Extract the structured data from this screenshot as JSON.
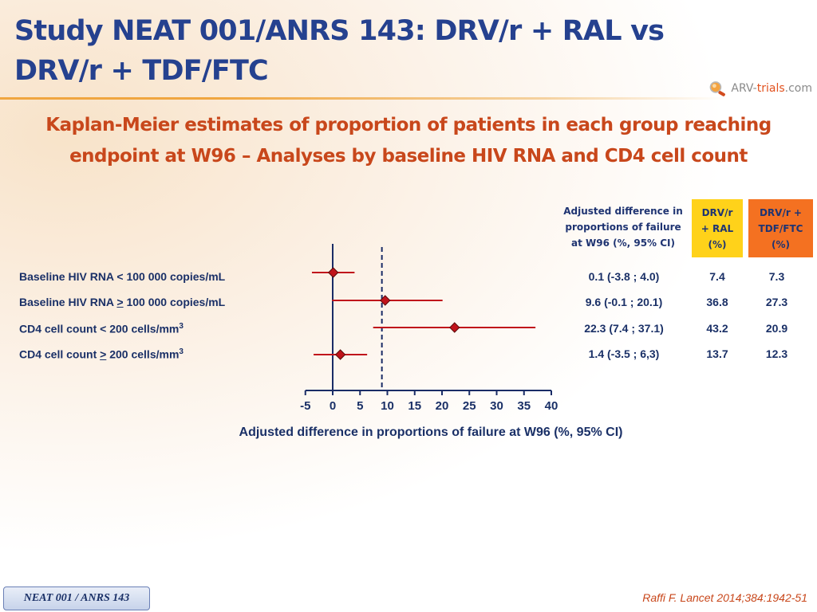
{
  "slide": {
    "title": "Study NEAT 001/ANRS 143: DRV/r + RAL vs DRV/r + TDF/FTC",
    "subtitle_line1": "Kaplan-Meier estimates of proportion of patients in each group reaching",
    "subtitle_line2": "endpoint at W96 – Analyses by baseline HIV RNA and CD4 cell count",
    "logo_prefix": "ARV-",
    "logo_main": "trials",
    "logo_suffix": ".com",
    "footer_label": "NEAT 001 / ANRS 143",
    "citation": "Raffi F. Lancet 2014;384:1942-51"
  },
  "table": {
    "headers": {
      "adjusted": [
        "Adjusted difference in",
        "proportions of failure",
        "at W96 (%, 95% CI)"
      ],
      "ral": [
        "DRV/r",
        "+ RAL",
        "(%)"
      ],
      "tdf": [
        "DRV/r +",
        "TDF/FTC",
        "(%)"
      ]
    },
    "colors": {
      "ral_header": "#ffd21a",
      "tdf_header": "#f47121"
    },
    "rows": [
      {
        "label_main": "Baseline HIV RNA < 100 000 copies/mL",
        "label_pre": "",
        "label_sym": "",
        "label_post": "",
        "label_sup": "",
        "adjusted": "0.1 (-3.8 ; 4.0)",
        "ral": "7.4",
        "tdf": "7.3"
      },
      {
        "label_main": "",
        "label_pre": "Baseline HIV RNA ",
        "label_sym": ">",
        "label_post": " 100 000 copies/mL",
        "label_sup": "",
        "adjusted": "9.6 (-0.1 ; 20.1)",
        "ral": "36.8",
        "tdf": "27.3"
      },
      {
        "label_main": "CD4 cell count < 200 cells/mm",
        "label_pre": "",
        "label_sym": "",
        "label_post": "",
        "label_sup": "3",
        "adjusted": "22.3 (7.4 ; 37.1)",
        "ral": "43.2",
        "tdf": "20.9"
      },
      {
        "label_main": "",
        "label_pre": "CD4 cell count ",
        "label_sym": ">",
        "label_post": " 200 cells/mm",
        "label_sup": "3",
        "adjusted": "1.4 (-3.5 ; 6,3)",
        "ral": "13.7",
        "tdf": "12.3"
      }
    ]
  },
  "chart_data": {
    "type": "scatter",
    "subtype": "forest_plot",
    "xlabel": "Adjusted difference in proportions of failure at W96 (%, 95% CI)",
    "xlim": [
      -5,
      40
    ],
    "xticks": [
      -5,
      0,
      5,
      10,
      15,
      20,
      25,
      30,
      35,
      40
    ],
    "reference_line": 0,
    "dashed_line": 9,
    "points": [
      {
        "category": "Baseline HIV RNA < 100 000 copies/mL",
        "estimate": 0.1,
        "ci_low": -3.8,
        "ci_high": 4.0
      },
      {
        "category": "Baseline HIV RNA > 100 000 copies/mL",
        "estimate": 9.6,
        "ci_low": -0.1,
        "ci_high": 20.1
      },
      {
        "category": "CD4 cell count < 200 cells/mm3",
        "estimate": 22.3,
        "ci_low": 7.4,
        "ci_high": 37.1
      },
      {
        "category": "CD4 cell count > 200 cells/mm3",
        "estimate": 1.4,
        "ci_low": -3.5,
        "ci_high": 6.3
      }
    ],
    "colors": {
      "marker": "#c0141b",
      "ci_line": "#c0141b",
      "axis": "#1a2c66"
    }
  }
}
